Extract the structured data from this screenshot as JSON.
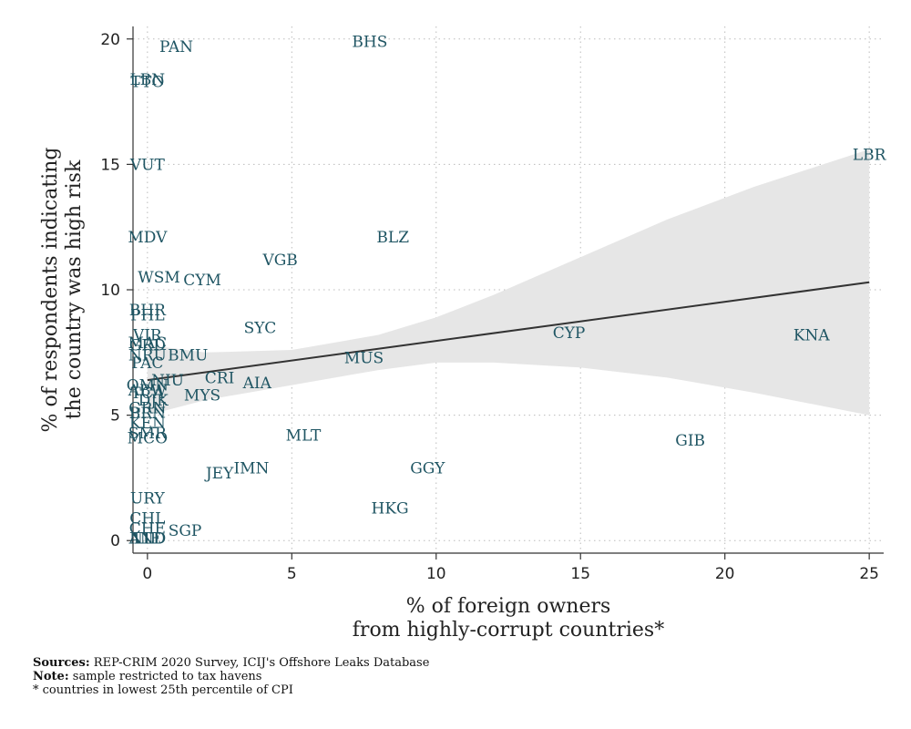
{
  "chart_data": {
    "type": "scatter",
    "title": "",
    "xlabel_lines": [
      "% of foreign owners",
      "from highly-corrupt countries*"
    ],
    "ylabel_lines": [
      "% of respondents indicating",
      "the country was high risk"
    ],
    "xlim": [
      -0.5,
      25.5
    ],
    "ylim": [
      -0.5,
      20.5
    ],
    "x_ticks": [
      0,
      5,
      10,
      15,
      20,
      25
    ],
    "y_ticks": [
      0,
      5,
      10,
      15,
      20
    ],
    "grid": "dotted",
    "colors": {
      "label": "#1f5563",
      "fit_line": "#333333",
      "ci_band": "#e6e6e6",
      "grid": "#bbbbbb"
    },
    "fit_line": {
      "x": [
        0,
        25
      ],
      "y": [
        6.4,
        10.3
      ]
    },
    "ci_band": {
      "x": [
        0,
        2,
        5,
        8,
        10,
        12,
        15,
        18,
        21,
        25
      ],
      "upper": [
        7.8,
        7.5,
        7.6,
        8.2,
        8.9,
        9.8,
        11.3,
        12.8,
        14.1,
        15.6
      ],
      "lower": [
        5.0,
        5.6,
        6.2,
        6.8,
        7.1,
        7.1,
        6.9,
        6.5,
        5.9,
        5.0
      ]
    },
    "points": [
      {
        "label": "PAN",
        "x": 1.0,
        "y": 19.7
      },
      {
        "label": "BHS",
        "x": 7.7,
        "y": 19.9
      },
      {
        "label": "LBN",
        "x": 0.0,
        "y": 18.4
      },
      {
        "label": "TTO",
        "x": 0.0,
        "y": 18.3
      },
      {
        "label": "VUT",
        "x": 0.0,
        "y": 15.0
      },
      {
        "label": "LBR",
        "x": 25.0,
        "y": 15.4
      },
      {
        "label": "MDV",
        "x": 0.0,
        "y": 12.1
      },
      {
        "label": "BLZ",
        "x": 8.5,
        "y": 12.1
      },
      {
        "label": "VGB",
        "x": 4.6,
        "y": 11.2
      },
      {
        "label": "WSM",
        "x": 0.4,
        "y": 10.5
      },
      {
        "label": "CYM",
        "x": 1.9,
        "y": 10.4
      },
      {
        "label": "BHR",
        "x": 0.0,
        "y": 9.2
      },
      {
        "label": "PHL",
        "x": 0.0,
        "y": 9.0
      },
      {
        "label": "SYC",
        "x": 3.9,
        "y": 8.5
      },
      {
        "label": "CYP",
        "x": 14.6,
        "y": 8.3
      },
      {
        "label": "KNA",
        "x": 23.0,
        "y": 8.2
      },
      {
        "label": "VIR",
        "x": 0.0,
        "y": 8.2
      },
      {
        "label": "MAC",
        "x": 0.0,
        "y": 7.9
      },
      {
        "label": "GRD",
        "x": 0.0,
        "y": 7.8
      },
      {
        "label": "NRU",
        "x": 0.0,
        "y": 7.4
      },
      {
        "label": "BMU",
        "x": 1.4,
        "y": 7.4
      },
      {
        "label": "MUS",
        "x": 7.5,
        "y": 7.3
      },
      {
        "label": "PAC",
        "x": 0.0,
        "y": 7.1
      },
      {
        "label": "NIU",
        "x": 0.7,
        "y": 6.4
      },
      {
        "label": "CRI",
        "x": 2.5,
        "y": 6.5
      },
      {
        "label": "AIA",
        "x": 3.8,
        "y": 6.3
      },
      {
        "label": "OMN",
        "x": 0.0,
        "y": 6.2
      },
      {
        "label": "ABW",
        "x": 0.0,
        "y": 6.0
      },
      {
        "label": "MYS",
        "x": 1.9,
        "y": 5.8
      },
      {
        "label": "TCA",
        "x": 0.0,
        "y": 5.9
      },
      {
        "label": "DJK",
        "x": 0.2,
        "y": 5.6
      },
      {
        "label": "GRN",
        "x": 0.0,
        "y": 5.3
      },
      {
        "label": "BRN",
        "x": 0.0,
        "y": 5.1
      },
      {
        "label": "KEN",
        "x": 0.0,
        "y": 4.7
      },
      {
        "label": "MLT",
        "x": 5.4,
        "y": 4.2
      },
      {
        "label": "GIB",
        "x": 18.8,
        "y": 4.0
      },
      {
        "label": "SMR",
        "x": 0.0,
        "y": 4.3
      },
      {
        "label": "MCO",
        "x": 0.0,
        "y": 4.1
      },
      {
        "label": "IMN",
        "x": 3.6,
        "y": 2.9
      },
      {
        "label": "JEY",
        "x": 2.5,
        "y": 2.7
      },
      {
        "label": "GGY",
        "x": 9.7,
        "y": 2.9
      },
      {
        "label": "URY",
        "x": 0.0,
        "y": 1.7
      },
      {
        "label": "HKG",
        "x": 8.4,
        "y": 1.3
      },
      {
        "label": "CHL",
        "x": 0.0,
        "y": 0.9
      },
      {
        "label": "CHE",
        "x": 0.0,
        "y": 0.5
      },
      {
        "label": "SGP",
        "x": 1.3,
        "y": 0.4
      },
      {
        "label": "AND",
        "x": 0.0,
        "y": 0.1
      },
      {
        "label": "LIE",
        "x": 0.0,
        "y": 0.1
      },
      {
        "label": "NLD",
        "x": 0.0,
        "y": 0.1
      }
    ]
  },
  "notes": {
    "sources_label": "Sources:",
    "sources_text": " REP-CRIM 2020 Survey, ICIJ's Offshore Leaks Database",
    "note_label": "Note:",
    "note_text": " sample restricted to tax havens",
    "footnote": "* countries in lowest 25th percentile of CPI"
  }
}
